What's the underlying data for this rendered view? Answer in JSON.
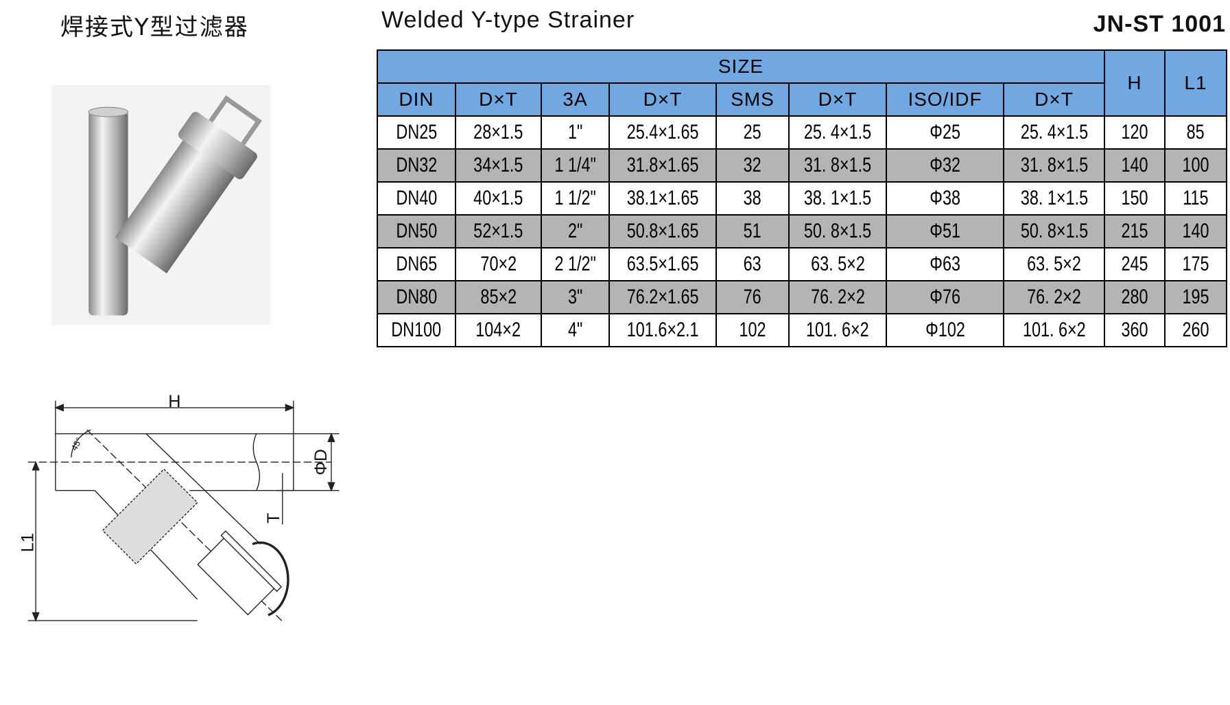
{
  "header": {
    "title_cn": "焊接式Y型过滤器",
    "title_en": "Welded Y-type Strainer",
    "code": "JN-ST 1001"
  },
  "table": {
    "group_header": "SIZE",
    "columns": [
      "DIN",
      "D×T",
      "3A",
      "D×T",
      "SMS",
      "D×T",
      "ISO/IDF",
      "D×T",
      "H",
      "L1"
    ],
    "rows": [
      [
        "DN25",
        "28×1.5",
        "1\"",
        "25.4×1.65",
        "25",
        "25. 4×1.5",
        "Φ25",
        "25. 4×1.5",
        "120",
        "85"
      ],
      [
        "DN32",
        "34×1.5",
        "1 1/4\"",
        "31.8×1.65",
        "32",
        "31. 8×1.5",
        "Φ32",
        "31. 8×1.5",
        "140",
        "100"
      ],
      [
        "DN40",
        "40×1.5",
        "1 1/2\"",
        "38.1×1.65",
        "38",
        "38. 1×1.5",
        "Φ38",
        "38. 1×1.5",
        "150",
        "115"
      ],
      [
        "DN50",
        "52×1.5",
        "2\"",
        "50.8×1.65",
        "51",
        "50. 8×1.5",
        "Φ51",
        "50. 8×1.5",
        "215",
        "140"
      ],
      [
        "DN65",
        "70×2",
        "2 1/2\"",
        "63.5×1.65",
        "63",
        "63. 5×2",
        "Φ63",
        "63. 5×2",
        "245",
        "175"
      ],
      [
        "DN80",
        "85×2",
        "3\"",
        "76.2×1.65",
        "76",
        "76. 2×2",
        "Φ76",
        "76. 2×2",
        "280",
        "195"
      ],
      [
        "DN100",
        "104×2",
        "4\"",
        "101.6×2.1",
        "102",
        "101. 6×2",
        "Φ102",
        "101. 6×2",
        "360",
        "260"
      ]
    ]
  },
  "diagram": {
    "labels": {
      "h": "H",
      "d": "ΦD",
      "t": "T",
      "l1": "L1",
      "angle": "45°"
    }
  }
}
